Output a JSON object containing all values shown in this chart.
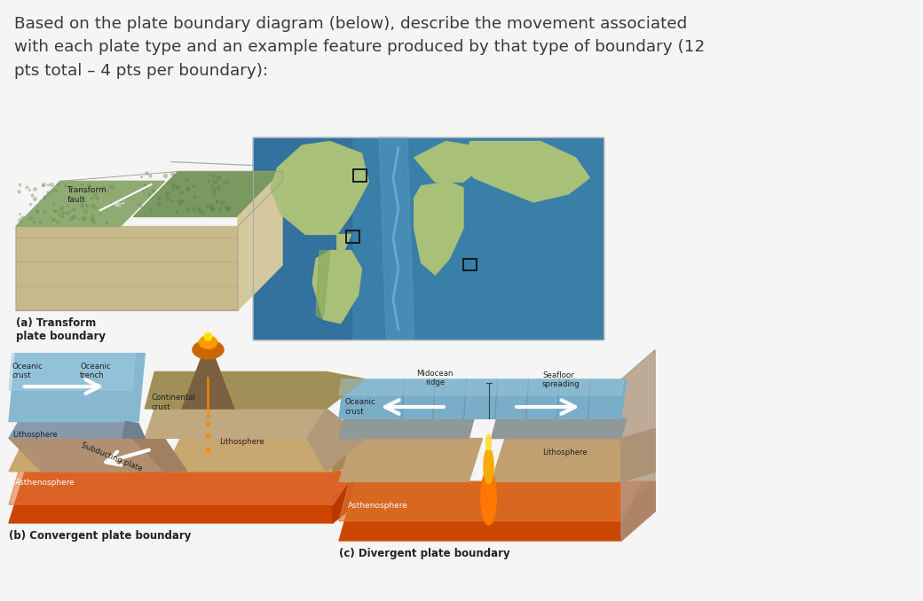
{
  "background_color": "#f5f5f5",
  "title_text": "Based on the plate boundary diagram (below), describe the movement associated\nwith each plate type and an example feature produced by that type of boundary (12\npts total – 4 pts per boundary):",
  "title_fontsize": 13.2,
  "title_color": "#3a3a3a",
  "label_a": "(a) Transform\nplate boundary",
  "label_b": "(b) Convergent plate boundary",
  "label_c": "(c) Divergent plate boundary",
  "label_fontsize": 8.5,
  "sub_labels": {
    "transform_fault": "Transform\nfault",
    "oceanic_crust_b": "Oceanic\ncrust",
    "oceanic_trench": "Oceanic\ntrench",
    "continental_crust": "Continental\ncrust",
    "lithosphere_b_left": "Lithosphere",
    "lithosphere_b_right": "Lithosphere",
    "asthenosphere_b": "Asthenosphere",
    "subducting_plate": "Subducting plate",
    "midocean_ridge": "Midocean\nridge",
    "seafloor_spreading": "Seafloor\nspreading",
    "oceanic_crust_c": "Oceanic\ncrust",
    "lithosphere_c": "Lithosphere",
    "asthenosphere_c": "Asthenosphere"
  },
  "colors": {
    "transform_green_top": "#8faa72",
    "transform_green_dark": "#7a9960",
    "transform_tan_front": "#c8b98a",
    "transform_tan_side": "#d4c89e",
    "map_ocean_deep": "#3a7fa8",
    "map_ocean_mid": "#5599c0",
    "map_land": "#a8c078",
    "map_land_dark": "#88a858",
    "convergent_ocean_water": "#88b8d0",
    "convergent_ocean_floor": "#8899aa",
    "convergent_lithosphere": "#c8a870",
    "convergent_asthenosphere_top": "#e87840",
    "convergent_asthenosphere_bot": "#cc4400",
    "convergent_subduct": "#b09878",
    "convergent_continent": "#c0a880",
    "divergent_ocean_water": "#7aaec8",
    "divergent_lithosphere": "#c0a070",
    "divergent_asthenosphere": "#e07830",
    "divergent_seafloor": "#909898",
    "white_arrow": "#ffffff",
    "border": "#888888",
    "text_dark": "#222222",
    "text_white": "#ffffff"
  },
  "fig_width": 10.4,
  "fig_height": 6.78
}
